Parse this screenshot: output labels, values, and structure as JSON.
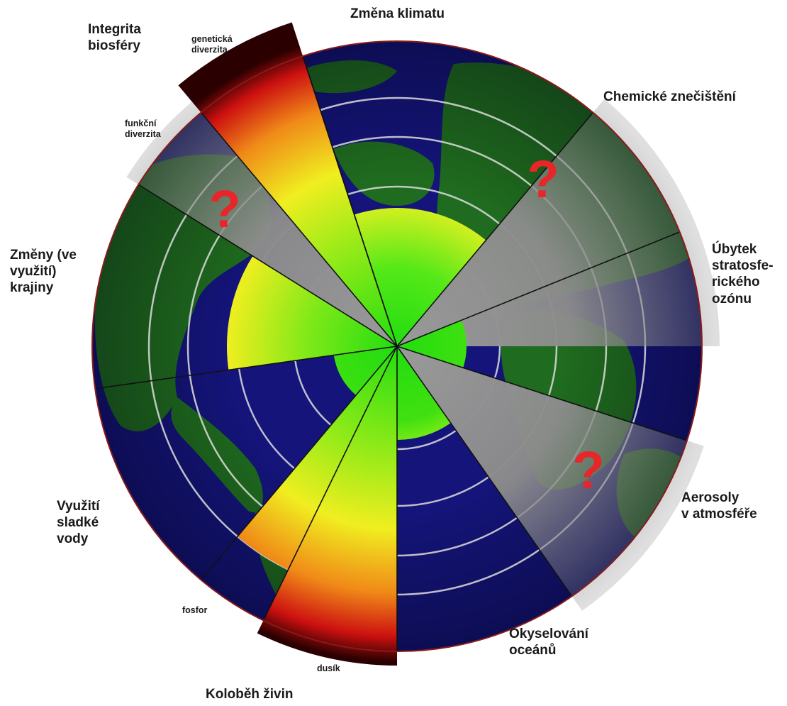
{
  "labels": {
    "zmena_klimatu": "Změna klimatu",
    "integrita_biosfery": "Integrita\nbiosféry",
    "geneticka_diverzita": "genetická\ndiverzita",
    "funkcni_diverzita": "funkční\ndiverzita",
    "chemicke_znecisteni": "Chemické znečištění",
    "ubytek_ozonu": "Úbytek\nstratosfe-\nrického\nozónu",
    "zmeny_krajiny": "Změny (ve\nvyužití)\nkrajiny",
    "aerosoly": "Aerosoly\nv atmosféře",
    "vyuziti_vody": "Využití\nsladké\nvody",
    "fosfor": "fosfor",
    "dusik": "dusík",
    "okyselovani": "Okyselování\noceánů",
    "kolobeh_zivin": "Koloběh živin"
  },
  "unknown_marker": "?",
  "colors": {
    "ocean": "#14147a",
    "land": "#1f6b1f",
    "safe_green": "#22dd10",
    "zone_yellow": "#f0ee20",
    "high_red": "#cc1010",
    "unknown_gray": "#8e8e8e",
    "rim": "#8a1a1a"
  }
}
